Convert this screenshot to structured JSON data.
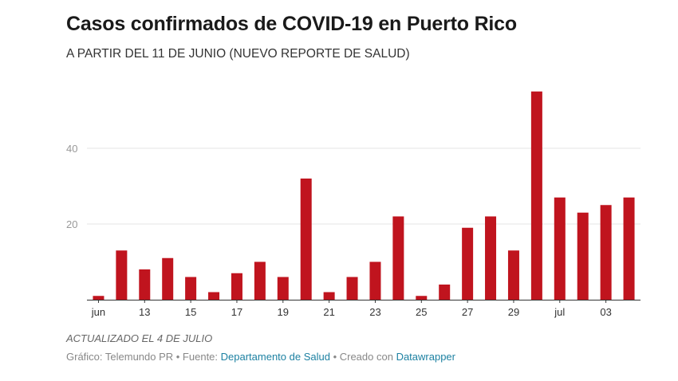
{
  "header": {
    "title": "Casos confirmados de COVID-19 en Puerto Rico",
    "subtitle": "A PARTIR DEL 11 DE JUNIO (NUEVO REPORTE DE SALUD)"
  },
  "footer": {
    "note": "ACTUALIZADO EL 4 DE JULIO",
    "source_prefix": "Gráfico: Telemundo PR • Fuente: ",
    "source_link": "Departamento de Salud",
    "source_mid": " • Creado con ",
    "tool_link": "Datawrapper"
  },
  "colors": {
    "bar": "#c0141e",
    "grid": "#e6e6e6",
    "axis": "#333333",
    "link": "#1d81a2"
  },
  "chart_data": {
    "type": "bar",
    "title": "Casos confirmados de COVID-19 en Puerto Rico",
    "subtitle": "A PARTIR DEL 11 DE JUNIO (NUEVO REPORTE DE SALUD)",
    "categories": [
      "2020-06-11",
      "2020-06-12",
      "2020-06-13",
      "2020-06-14",
      "2020-06-15",
      "2020-06-16",
      "2020-06-17",
      "2020-06-18",
      "2020-06-19",
      "2020-06-20",
      "2020-06-21",
      "2020-06-22",
      "2020-06-23",
      "2020-06-24",
      "2020-06-25",
      "2020-06-26",
      "2020-06-27",
      "2020-06-28",
      "2020-06-29",
      "2020-06-30",
      "2020-07-01",
      "2020-07-02",
      "2020-07-03",
      "2020-07-04"
    ],
    "values": [
      1,
      13,
      8,
      11,
      6,
      2,
      7,
      10,
      6,
      32,
      2,
      6,
      10,
      22,
      1,
      4,
      19,
      22,
      13,
      55,
      27,
      23,
      25,
      27
    ],
    "x_tick_labels": [
      {
        "at": "2020-06-11",
        "label": "jun"
      },
      {
        "at": "2020-06-13",
        "label": "13"
      },
      {
        "at": "2020-06-15",
        "label": "15"
      },
      {
        "at": "2020-06-17",
        "label": "17"
      },
      {
        "at": "2020-06-19",
        "label": "19"
      },
      {
        "at": "2020-06-21",
        "label": "21"
      },
      {
        "at": "2020-06-23",
        "label": "23"
      },
      {
        "at": "2020-06-25",
        "label": "25"
      },
      {
        "at": "2020-06-27",
        "label": "27"
      },
      {
        "at": "2020-06-29",
        "label": "29"
      },
      {
        "at": "2020-07-01",
        "label": "jul"
      },
      {
        "at": "2020-07-03",
        "label": "03"
      }
    ],
    "y_ticks": [
      20,
      40
    ],
    "ylim": [
      0,
      60
    ],
    "grid": true,
    "xlabel": "",
    "ylabel": ""
  }
}
